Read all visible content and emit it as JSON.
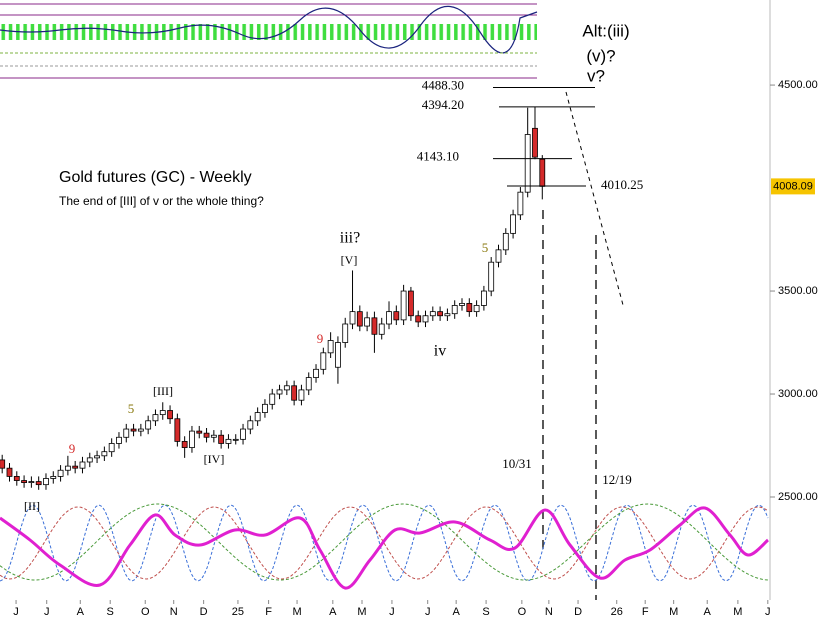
{
  "chart_data": {
    "type": "candlestick",
    "title": "Gold futures (GC) - Weekly",
    "subtitle": "The end of [III] of v or the whole thing?",
    "up_color": "#ffffff",
    "down_color": "#d42a2a",
    "open": [
      2680,
      2640,
      2600,
      2580,
      2570,
      2575,
      2560,
      2590,
      2600,
      2630,
      2650,
      2640,
      2670,
      2690,
      2700,
      2720,
      2760,
      2790,
      2830,
      2820,
      2830,
      2870,
      2900,
      2920,
      2880,
      2770,
      2740,
      2820,
      2810,
      2790,
      2800,
      2760,
      2780,
      2780,
      2830,
      2870,
      2910,
      2950,
      3000,
      3020,
      3040,
      2970,
      3020,
      3080,
      3120,
      3200,
      3130,
      3250,
      3340,
      3400,
      3330,
      3370,
      3290,
      3340,
      3400,
      3360,
      3500,
      3380,
      3350,
      3380,
      3400,
      3380,
      3390,
      3430,
      3440,
      3400,
      3430,
      3500,
      3640,
      3700,
      3780,
      3870,
      3980,
      4290,
      4140
    ],
    "high": [
      2705,
      2665,
      2625,
      2605,
      2600,
      2600,
      2615,
      2625,
      2655,
      2700,
      2675,
      2695,
      2715,
      2725,
      2745,
      2785,
      2815,
      2855,
      2855,
      2855,
      2895,
      2925,
      2960,
      2945,
      2905,
      2795,
      2845,
      2845,
      2835,
      2825,
      2825,
      2805,
      2805,
      2855,
      2895,
      2935,
      2975,
      3025,
      3045,
      3065,
      3065,
      3045,
      3105,
      3145,
      3225,
      3300,
      3280,
      3370,
      3600,
      3430,
      3400,
      3400,
      3370,
      3450,
      3430,
      3530,
      3520,
      3405,
      3405,
      3425,
      3425,
      3415,
      3455,
      3465,
      3465,
      3455,
      3525,
      3665,
      3725,
      3805,
      3895,
      4005,
      4390,
      4394.2,
      4160
    ],
    "low": [
      2615,
      2575,
      2555,
      2545,
      2545,
      2535,
      2535,
      2565,
      2575,
      2605,
      2615,
      2615,
      2645,
      2665,
      2675,
      2695,
      2735,
      2765,
      2795,
      2795,
      2805,
      2845,
      2875,
      2855,
      2745,
      2690,
      2715,
      2785,
      2765,
      2765,
      2735,
      2735,
      2755,
      2755,
      2805,
      2845,
      2885,
      2925,
      2975,
      2995,
      2945,
      2945,
      2995,
      3055,
      3095,
      3175,
      3050,
      3225,
      3315,
      3305,
      3305,
      3200,
      3265,
      3315,
      3335,
      3335,
      3355,
      3325,
      3325,
      3355,
      3355,
      3355,
      3365,
      3405,
      3375,
      3375,
      3405,
      3475,
      3615,
      3675,
      3755,
      3845,
      3955,
      4140,
      3945
    ],
    "close": [
      2640,
      2600,
      2580,
      2570,
      2575,
      2560,
      2590,
      2600,
      2630,
      2650,
      2640,
      2670,
      2690,
      2700,
      2720,
      2760,
      2790,
      2830,
      2820,
      2830,
      2870,
      2900,
      2920,
      2880,
      2770,
      2740,
      2820,
      2810,
      2790,
      2800,
      2760,
      2780,
      2780,
      2830,
      2870,
      2910,
      2950,
      3000,
      3020,
      3040,
      2970,
      3020,
      3080,
      3120,
      3200,
      3260,
      3250,
      3340,
      3400,
      3330,
      3370,
      3290,
      3340,
      3400,
      3360,
      3500,
      3380,
      3350,
      3380,
      3400,
      3380,
      3390,
      3430,
      3440,
      3400,
      3430,
      3500,
      3640,
      3700,
      3780,
      3870,
      3980,
      4260,
      4150,
      4008.09
    ],
    "xlim": [
      -0.3,
      105.2
    ],
    "xticks": [
      {
        "value": 1.9,
        "label": "J"
      },
      {
        "value": 6.1,
        "label": "J"
      },
      {
        "value": 10.7,
        "label": "A"
      },
      {
        "value": 14.8,
        "label": "S"
      },
      {
        "value": 19.6,
        "label": "O"
      },
      {
        "value": 23.5,
        "label": "N"
      },
      {
        "value": 27.6,
        "label": "D"
      },
      {
        "value": 32.3,
        "label": "25"
      },
      {
        "value": 36.5,
        "label": "F"
      },
      {
        "value": 40.4,
        "label": "M"
      },
      {
        "value": 45.3,
        "label": "A"
      },
      {
        "value": 49.3,
        "label": "M"
      },
      {
        "value": 53.4,
        "label": "J"
      },
      {
        "value": 58.3,
        "label": "J"
      },
      {
        "value": 62.2,
        "label": "A"
      },
      {
        "value": 66.3,
        "label": "S"
      },
      {
        "value": 71.2,
        "label": "O"
      },
      {
        "value": 74.9,
        "label": "N"
      },
      {
        "value": 78.9,
        "label": "D"
      },
      {
        "value": 84.2,
        "label": "26"
      },
      {
        "value": 88.1,
        "label": "F"
      },
      {
        "value": 92,
        "label": "M"
      },
      {
        "value": 96.6,
        "label": "A"
      },
      {
        "value": 100.8,
        "label": "M"
      },
      {
        "value": 104.9,
        "label": "J"
      }
    ],
    "ylim": [
      2000,
      4913
    ],
    "yticks": [
      {
        "value": 2500,
        "label": "2500.00"
      },
      {
        "value": 3000,
        "label": "3000.00"
      },
      {
        "value": 3500,
        "label": "3500.00"
      },
      {
        "value": 4500,
        "label": "4500.00"
      }
    ],
    "last_price": 4008.09,
    "levels": [
      {
        "value": 4488.3,
        "label": "4488.30"
      },
      {
        "value": 4394.2,
        "label": "4394.20"
      },
      {
        "value": 4143.1,
        "label": "4143.10"
      },
      {
        "value": 4010.25,
        "label": "4010.25"
      }
    ],
    "annotations": [
      "Alt:(iii)",
      "(v)?",
      "v?",
      "iii?",
      "[V]",
      "iv",
      "[III]",
      "[IV]",
      "[II]",
      "5",
      "5",
      "9",
      "9",
      "10/31",
      "12/19"
    ]
  }
}
